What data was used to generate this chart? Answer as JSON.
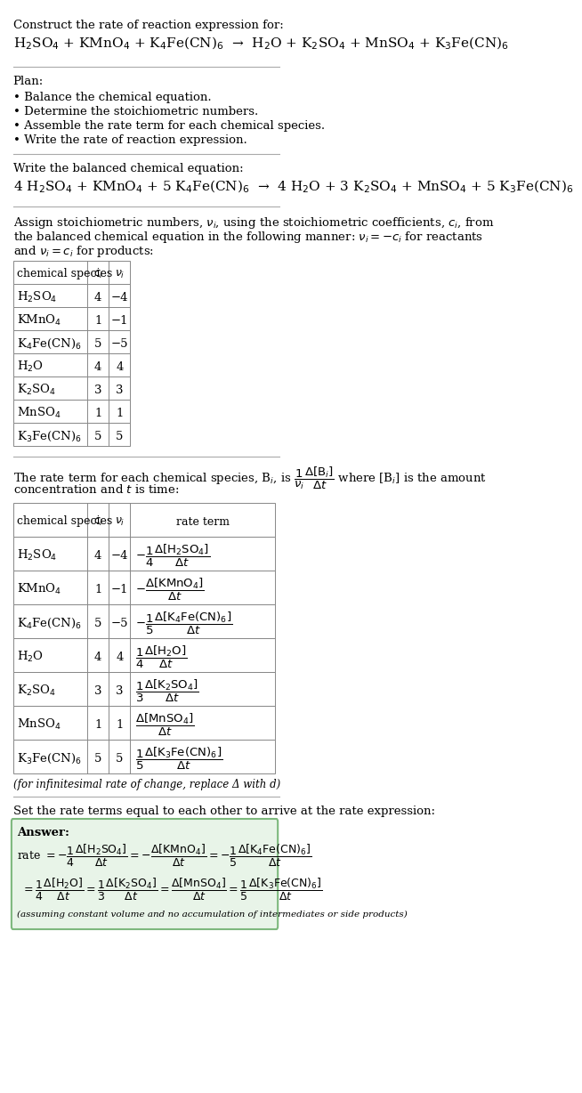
{
  "title_line1": "Construct the rate of reaction expression for:",
  "reaction_unbalanced": "H$_2$SO$_4$ + KMnO$_4$ + K$_4$Fe(CN)$_6$  →  H$_2$O + K$_2$SO$_4$ + MnSO$_4$ + K$_3$Fe(CN)$_6$",
  "plan_header": "Plan:",
  "plan_items": [
    "• Balance the chemical equation.",
    "• Determine the stoichiometric numbers.",
    "• Assemble the rate term for each chemical species.",
    "• Write the rate of reaction expression."
  ],
  "balanced_header": "Write the balanced chemical equation:",
  "reaction_balanced": "4 H$_2$SO$_4$ + KMnO$_4$ + 5 K$_4$Fe(CN)$_6$  →  4 H$_2$O + 3 K$_2$SO$_4$ + MnSO$_4$ + 5 K$_3$Fe(CN)$_6$",
  "stoich_text_lines": [
    "Assign stoichiometric numbers, $\\nu_i$, using the stoichiometric coefficients, $c_i$, from",
    "the balanced chemical equation in the following manner: $\\nu_i = -c_i$ for reactants",
    "and $\\nu_i = c_i$ for products:"
  ],
  "table1_headers": [
    "chemical species",
    "$c_i$",
    "$\\nu_i$"
  ],
  "table1_rows": [
    [
      "H$_2$SO$_4$",
      "4",
      "−4"
    ],
    [
      "KMnO$_4$",
      "1",
      "−1"
    ],
    [
      "K$_4$Fe(CN)$_6$",
      "5",
      "−5"
    ],
    [
      "H$_2$O",
      "4",
      "4"
    ],
    [
      "K$_2$SO$_4$",
      "3",
      "3"
    ],
    [
      "MnSO$_4$",
      "1",
      "1"
    ],
    [
      "K$_3$Fe(CN)$_6$",
      "5",
      "5"
    ]
  ],
  "rate_text_lines": [
    "The rate term for each chemical species, B$_i$, is $\\dfrac{1}{\\nu_i}\\dfrac{\\Delta[\\mathrm{B}_i]}{\\Delta t}$ where [B$_i$] is the amount",
    "concentration and $t$ is time:"
  ],
  "table2_headers": [
    "chemical species",
    "$c_i$",
    "$\\nu_i$",
    "rate term"
  ],
  "table2_rows": [
    [
      "H$_2$SO$_4$",
      "4",
      "−4",
      "$-\\dfrac{1}{4}\\dfrac{\\Delta[\\mathrm{H_2SO_4}]}{\\Delta t}$"
    ],
    [
      "KMnO$_4$",
      "1",
      "−1",
      "$-\\dfrac{\\Delta[\\mathrm{KMnO_4}]}{\\Delta t}$"
    ],
    [
      "K$_4$Fe(CN)$_6$",
      "5",
      "−5",
      "$-\\dfrac{1}{5}\\dfrac{\\Delta[\\mathrm{K_4Fe(CN)_6}]}{\\Delta t}$"
    ],
    [
      "H$_2$O",
      "4",
      "4",
      "$\\dfrac{1}{4}\\dfrac{\\Delta[\\mathrm{H_2O}]}{\\Delta t}$"
    ],
    [
      "K$_2$SO$_4$",
      "3",
      "3",
      "$\\dfrac{1}{3}\\dfrac{\\Delta[\\mathrm{K_2SO_4}]}{\\Delta t}$"
    ],
    [
      "MnSO$_4$",
      "1",
      "1",
      "$\\dfrac{\\Delta[\\mathrm{MnSO_4}]}{\\Delta t}$"
    ],
    [
      "K$_3$Fe(CN)$_6$",
      "5",
      "5",
      "$\\dfrac{1}{5}\\dfrac{\\Delta[\\mathrm{K_3Fe(CN)_6}]}{\\Delta t}$"
    ]
  ],
  "infinitesimal_note": "(for infinitesimal rate of change, replace Δ with d)",
  "set_rate_text": "Set the rate terms equal to each other to arrive at the rate expression:",
  "answer_label": "Answer:",
  "answer_box_color": "#e8f4e8",
  "answer_border_color": "#7db87d",
  "answer_line1": "rate $= -\\dfrac{1}{4}\\dfrac{\\Delta[\\mathrm{H_2SO_4}]}{\\Delta t} = -\\dfrac{\\Delta[\\mathrm{KMnO_4}]}{\\Delta t} = -\\dfrac{1}{5}\\dfrac{\\Delta[\\mathrm{K_4Fe(CN)_6}]}{\\Delta t}$",
  "answer_line2": "$= \\dfrac{1}{4}\\dfrac{\\Delta[\\mathrm{H_2O}]}{\\Delta t} = \\dfrac{1}{3}\\dfrac{\\Delta[\\mathrm{K_2SO_4}]}{\\Delta t} = \\dfrac{\\Delta[\\mathrm{MnSO_4}]}{\\Delta t} = \\dfrac{1}{5}\\dfrac{\\Delta[\\mathrm{K_3Fe(CN)_6}]}{\\Delta t}$",
  "answer_note": "(assuming constant volume and no accumulation of intermediates or side products)",
  "bg_color": "#ffffff",
  "text_color": "#000000",
  "font_size": 9.5
}
